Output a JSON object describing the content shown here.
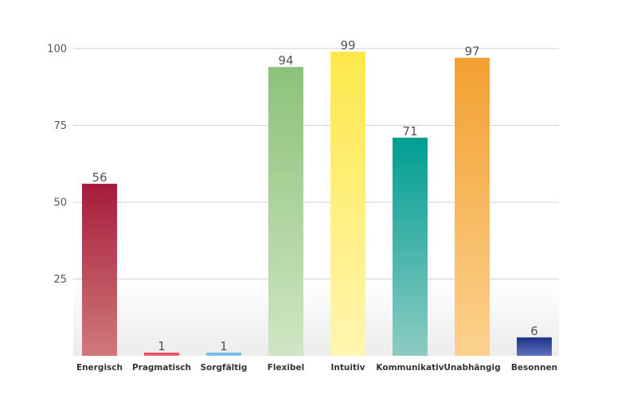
{
  "chart_data": {
    "type": "bar",
    "categories": [
      "Energisch",
      "Pragmatisch",
      "Sorgfältig",
      "Flexibel",
      "Intuitiv",
      "Kommunikativ",
      "Unabhängig",
      "Besonnen"
    ],
    "values": [
      56,
      1,
      1,
      94,
      99,
      71,
      97,
      6
    ],
    "colors": [
      [
        "#a61c3c",
        "#cf7a7a"
      ],
      [
        "#e03a4a",
        "#f0707c"
      ],
      [
        "#5fb4e0",
        "#8fcbee"
      ],
      [
        "#8cc27a",
        "#cfe6c3"
      ],
      [
        "#fde84a",
        "#fff6b0"
      ],
      [
        "#009e92",
        "#8ccbc3"
      ],
      [
        "#f3a030",
        "#fbd28e"
      ],
      [
        "#1b2f86",
        "#6073c0"
      ]
    ],
    "yticks": [
      25,
      50,
      75,
      100
    ],
    "ylim": [
      0,
      100
    ],
    "grid": true,
    "title": "",
    "xlabel": "",
    "ylabel": ""
  }
}
